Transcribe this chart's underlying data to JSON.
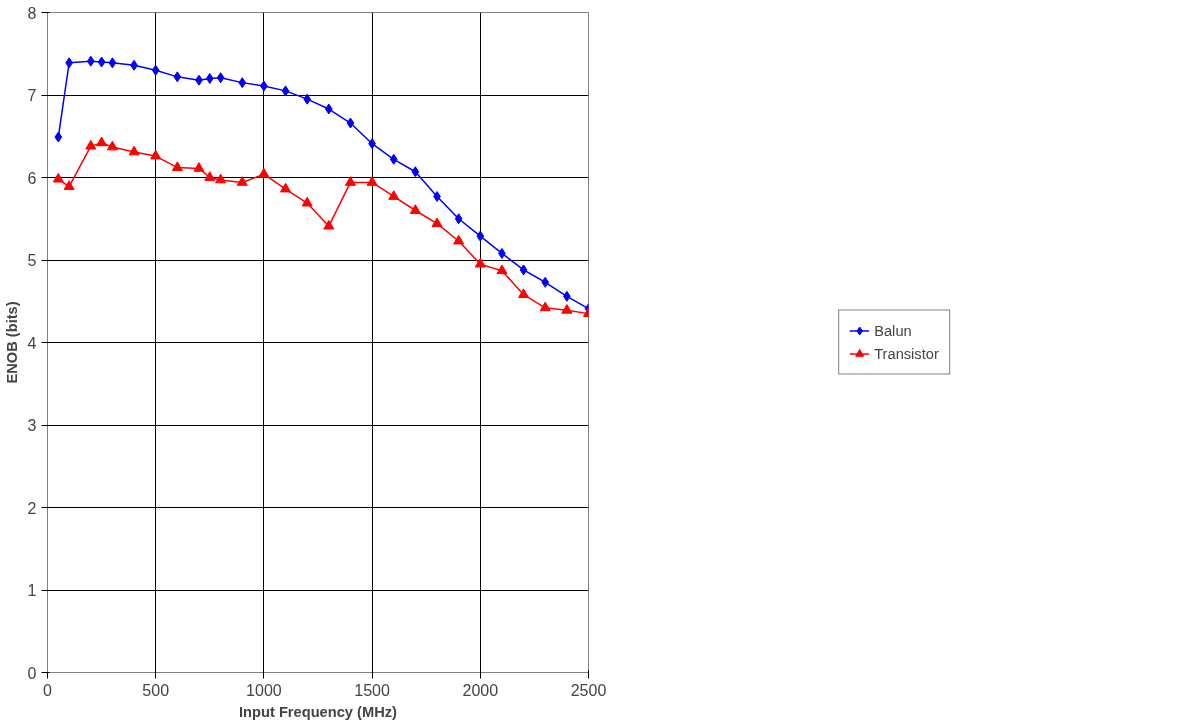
{
  "chart_data": {
    "type": "line",
    "xlabel": "Input Frequency (MHz)",
    "ylabel": "ENOB (bits)",
    "x": [
      50,
      100,
      200,
      250,
      300,
      400,
      500,
      600,
      700,
      750,
      800,
      900,
      1000,
      1100,
      1200,
      1300,
      1400,
      1500,
      1600,
      1700,
      1800,
      1900,
      2000,
      2100,
      2200,
      2300,
      2400,
      2500
    ],
    "series": [
      {
        "name": "Balun",
        "color": "#0000ff",
        "marker": "diamond",
        "values": [
          6.49,
          7.39,
          7.41,
          7.4,
          7.39,
          7.36,
          7.3,
          7.22,
          7.18,
          7.2,
          7.21,
          7.15,
          7.11,
          7.05,
          6.95,
          6.83,
          6.66,
          6.41,
          6.22,
          6.07,
          5.77,
          5.5,
          5.29,
          5.08,
          4.88,
          4.73,
          4.56,
          4.41
        ]
      },
      {
        "name": "Transistor",
        "color": "#ff0000",
        "marker": "triangle",
        "values": [
          5.98,
          5.89,
          6.38,
          6.42,
          6.37,
          6.31,
          6.26,
          6.12,
          6.11,
          6.0,
          5.97,
          5.94,
          6.04,
          5.86,
          5.69,
          5.41,
          5.94,
          5.94,
          5.77,
          5.6,
          5.44,
          5.23,
          4.95,
          4.87,
          4.58,
          4.42,
          4.39,
          4.35
        ]
      }
    ],
    "xlim": [
      0,
      2500
    ],
    "xticks": [
      0,
      500,
      1000,
      1500,
      2000,
      2500
    ],
    "ylim": [
      0,
      8
    ],
    "yticks": [
      0,
      1,
      2,
      3,
      4,
      5,
      6,
      7,
      8
    ],
    "grid": true,
    "legend": "right",
    "line_style": "solid"
  }
}
